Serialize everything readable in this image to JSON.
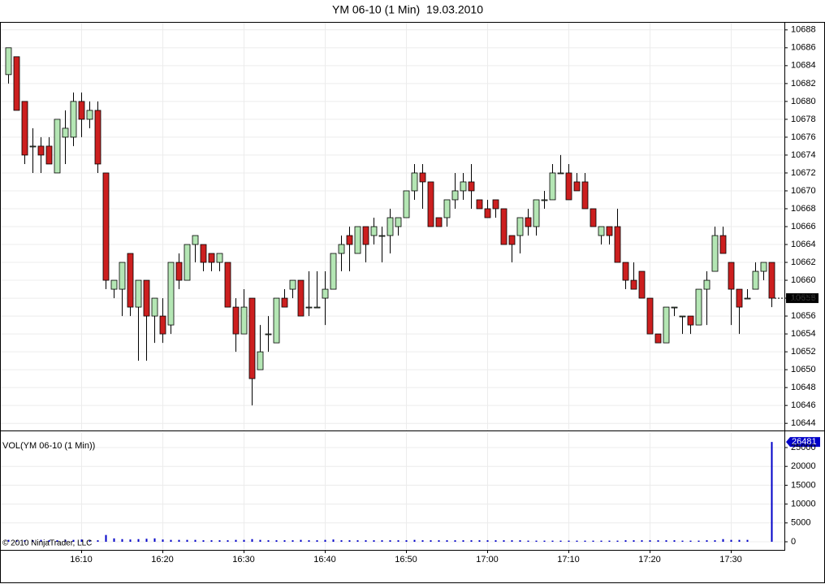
{
  "chart_data": [
    {
      "type": "candlestick",
      "title": "YM 06-10 (1 Min)  19.03.2010",
      "categories": [
        null,
        null,
        null,
        null,
        null,
        null,
        null,
        null,
        null,
        "16:10",
        null,
        null,
        null,
        null,
        null,
        null,
        null,
        null,
        null,
        "16:20",
        null,
        null,
        null,
        null,
        null,
        null,
        null,
        null,
        null,
        "16:30",
        null,
        null,
        null,
        null,
        null,
        null,
        null,
        null,
        null,
        "16:40",
        null,
        null,
        null,
        null,
        null,
        null,
        null,
        null,
        null,
        "16:50",
        null,
        null,
        null,
        null,
        null,
        null,
        null,
        null,
        null,
        "17:00",
        null,
        null,
        null,
        null,
        null,
        null,
        null,
        null,
        null,
        "17:10",
        null,
        null,
        null,
        null,
        null,
        null,
        null,
        null,
        null,
        "17:20",
        null,
        null,
        null,
        null,
        null,
        null,
        null,
        null,
        null,
        "17:30",
        null,
        null,
        null,
        null,
        null
      ],
      "open": [
        10683,
        10685,
        10680,
        10675,
        10675,
        10675,
        10672,
        10676,
        10676,
        10680,
        10678,
        10679,
        10672,
        10659,
        10659,
        10663,
        10657,
        10660,
        10656,
        10656,
        10655,
        10662,
        10660,
        10664,
        10664,
        10663,
        10662,
        10662,
        10657,
        10654,
        10658,
        10650,
        10654,
        10653,
        10658,
        10659,
        10660,
        10657,
        10657,
        10658,
        10659,
        10663,
        10665,
        10663,
        10666,
        10665,
        10665,
        10665,
        10666,
        10667,
        10670,
        10672,
        10671,
        10667,
        10667,
        10669,
        10670,
        10671,
        10669,
        10668,
        10669,
        10668,
        10665,
        10665,
        10667,
        10666,
        10669,
        10669,
        10672,
        10672,
        10671,
        10671,
        10668,
        10665,
        10666,
        10666,
        10662,
        10660,
        10661,
        10658,
        10654,
        10653,
        10657,
        10656,
        10656,
        10655,
        10659,
        10661,
        10665,
        10662,
        10659,
        10658,
        10659,
        10661,
        10662
      ],
      "high": [
        10686,
        10685,
        10680,
        10677,
        10676,
        10676,
        10678,
        10679,
        10681,
        10681,
        10680,
        10680,
        10672,
        10660,
        10662,
        10663,
        10660,
        10660,
        10658,
        10658,
        10662,
        10663,
        10664,
        10665,
        10664,
        10663,
        10663,
        10662,
        10658,
        10659,
        10658,
        10655,
        10656,
        10658,
        10659,
        10660,
        10660,
        10661,
        10661,
        10661,
        10663,
        10665,
        10666,
        10666,
        10666,
        10667,
        10666,
        10668,
        10667,
        10670,
        10673,
        10673,
        10671,
        10667,
        10669,
        10672,
        10672,
        10673,
        10669,
        10669,
        10669,
        10668,
        10665,
        10667,
        10668,
        10669,
        10670,
        10673,
        10674,
        10673,
        10672,
        10672,
        10668,
        10666,
        10666,
        10668,
        10662,
        10662,
        10661,
        10658,
        10654,
        10657,
        10657,
        10656,
        10656,
        10659,
        10661,
        10666,
        10666,
        10662,
        10659,
        10659,
        10662,
        10662,
        10662
      ],
      "low": [
        10682,
        10679,
        10673,
        10672,
        10672,
        10673,
        10672,
        10673,
        10675,
        10676,
        10677,
        10672,
        10659,
        10658,
        10656,
        10656,
        10651,
        10651,
        10653,
        10653,
        10654,
        10659,
        10660,
        10662,
        10661,
        10661,
        10661,
        10657,
        10652,
        10654,
        10646,
        10650,
        10652,
        10653,
        10657,
        10658,
        10656,
        10656,
        10657,
        10655,
        10659,
        10661,
        10661,
        10663,
        10662,
        10664,
        10662,
        10663,
        10665,
        10667,
        10669,
        10668,
        10666,
        10666,
        10666,
        10668,
        10669,
        10668,
        10668,
        10667,
        10667,
        10664,
        10662,
        10663,
        10665,
        10665,
        10668,
        10669,
        10672,
        10669,
        10670,
        10668,
        10666,
        10664,
        10664,
        10662,
        10659,
        10659,
        10658,
        10654,
        10653,
        10653,
        10656,
        10654,
        10654,
        10655,
        10655,
        10661,
        10663,
        10655,
        10654,
        10658,
        10659,
        10660,
        10657
      ],
      "close": [
        10686,
        10679,
        10674,
        10675,
        10674,
        10673,
        10678,
        10677,
        10680,
        10678,
        10679,
        10673,
        10660,
        10660,
        10662,
        10657,
        10660,
        10656,
        10658,
        10654,
        10662,
        10660,
        10664,
        10665,
        10662,
        10662,
        10663,
        10657,
        10654,
        10657,
        10649,
        10652,
        10654,
        10658,
        10657,
        10660,
        10656,
        10657,
        10657,
        10659,
        10663,
        10664,
        10664,
        10666,
        10664,
        10666,
        10665,
        10667,
        10667,
        10670,
        10672,
        10671,
        10666,
        10666,
        10669,
        10670,
        10671,
        10670,
        10668,
        10667,
        10668,
        10664,
        10664,
        10667,
        10666,
        10669,
        10669,
        10672,
        10672,
        10669,
        10670,
        10668,
        10666,
        10666,
        10665,
        10662,
        10660,
        10659,
        10658,
        10654,
        10653,
        10657,
        10657,
        10656,
        10655,
        10659,
        10660,
        10665,
        10663,
        10659,
        10657,
        10658,
        10661,
        10662,
        10658
      ],
      "up_color": "#b4e6b4",
      "down_color": "#cc1f1f",
      "ylim": [
        10643.2,
        10688.8
      ],
      "yticks": [
        10644,
        10646,
        10648,
        10650,
        10652,
        10654,
        10656,
        10658,
        10660,
        10662,
        10664,
        10666,
        10668,
        10670,
        10672,
        10674,
        10676,
        10678,
        10680,
        10682,
        10684,
        10686,
        10688
      ],
      "grid": true
    },
    {
      "type": "bar",
      "title": "VOL(YM 06-10 (1 Min))",
      "values": [
        500,
        400,
        400,
        400,
        500,
        400,
        400,
        500,
        500,
        600,
        400,
        400,
        1800,
        900,
        700,
        600,
        700,
        800,
        900,
        600,
        500,
        500,
        500,
        500,
        400,
        400,
        400,
        400,
        500,
        500,
        700,
        500,
        400,
        400,
        400,
        400,
        500,
        400,
        400,
        500,
        600,
        400,
        400,
        400,
        400,
        400,
        400,
        400,
        400,
        400,
        500,
        400,
        400,
        400,
        400,
        400,
        400,
        400,
        400,
        400,
        400,
        400,
        400,
        400,
        300,
        300,
        300,
        300,
        300,
        300,
        300,
        300,
        300,
        300,
        300,
        300,
        400,
        400,
        400,
        400,
        400,
        400,
        400,
        300,
        300,
        300,
        400,
        400,
        700,
        500,
        500,
        500,
        0,
        0,
        26481
      ],
      "color": "#0000c8",
      "ylim": [
        -2155,
        28880
      ],
      "yticks": [
        0,
        5000,
        10000,
        15000,
        20000,
        25000
      ],
      "grid": true
    }
  ],
  "copyright": "© 2010 NinjaTrader, LLC"
}
